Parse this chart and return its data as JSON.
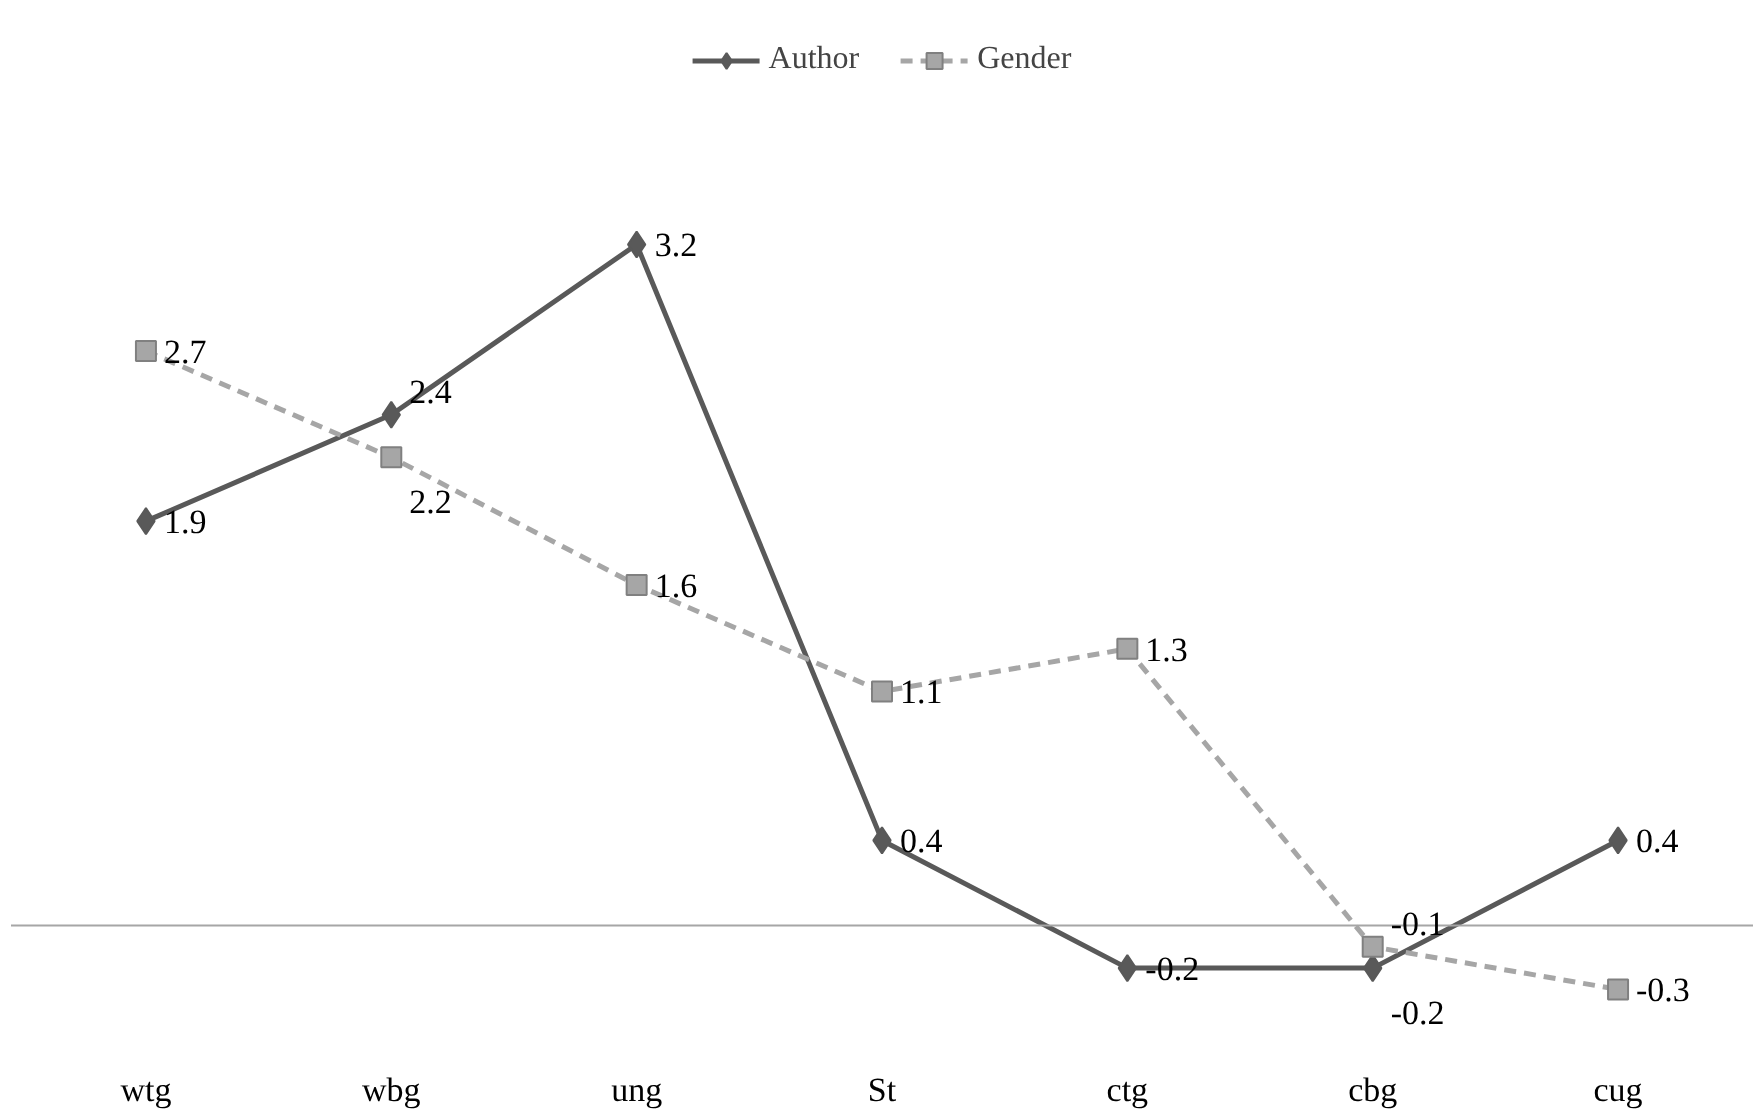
{
  "chart_data": {
    "type": "line",
    "categories": [
      "wtg",
      "wbg",
      "ung",
      "St",
      "ctg",
      "cbg",
      "cug"
    ],
    "series": [
      {
        "name": "Author",
        "color": "#595959",
        "values": [
          1.9,
          2.4,
          3.2,
          0.4,
          -0.2,
          -0.2,
          0.4
        ],
        "marker": "diamond",
        "line_style": "solid"
      },
      {
        "name": "Gender",
        "color": "#a6a6a6",
        "values": [
          2.7,
          2.2,
          1.6,
          1.1,
          1.3,
          -0.1,
          -0.3
        ],
        "marker": "square",
        "line_style": "dashed"
      }
    ],
    "ref_lines": [
      {
        "axis": "y",
        "value": 0,
        "color": "#a6a6a6"
      }
    ],
    "data_labels": true,
    "legend": "top",
    "grid": false,
    "tick_labels": "x"
  }
}
